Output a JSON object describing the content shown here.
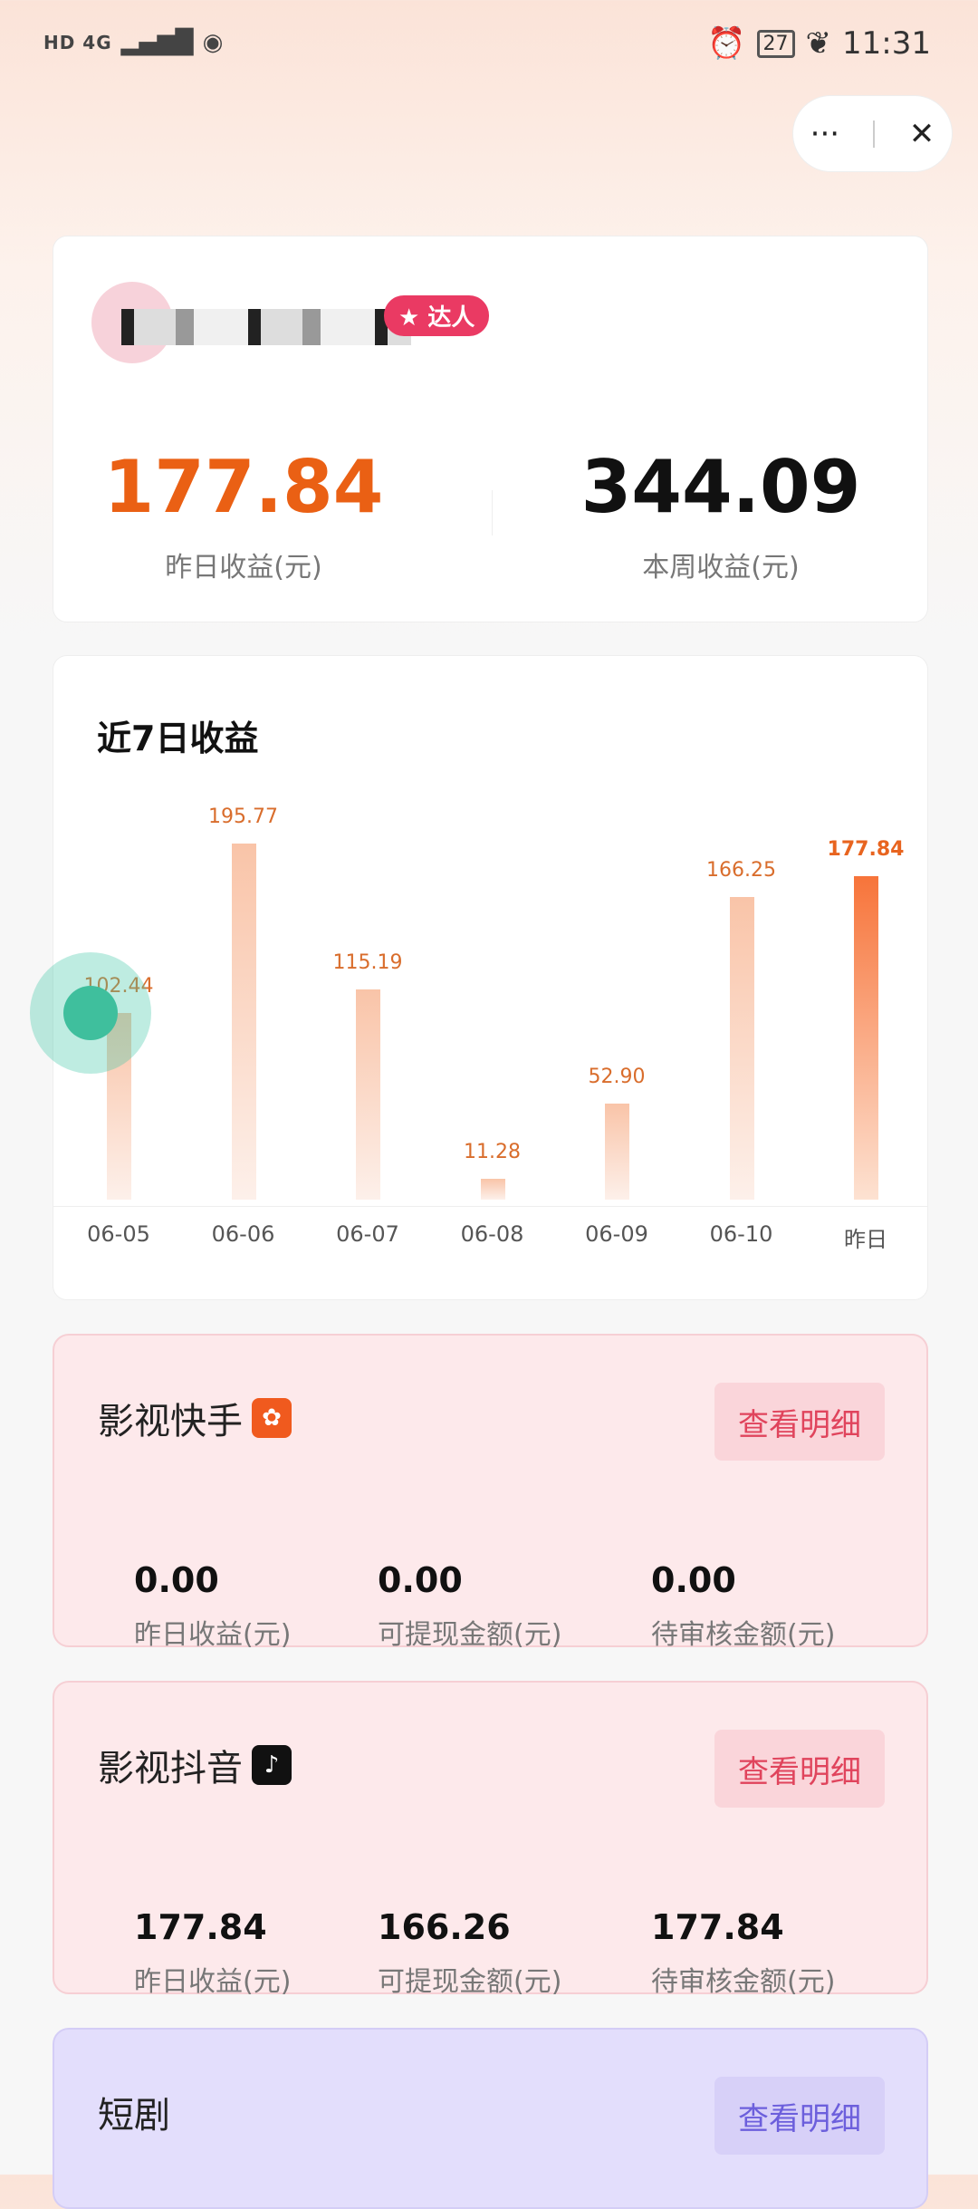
{
  "status_bar": {
    "left": "HD 4G",
    "time": "11:31",
    "battery": "27"
  },
  "capsule": {
    "more": "···",
    "close": "✕"
  },
  "profile": {
    "badge": "达人",
    "yesterday_value": "177.84",
    "yesterday_label": "昨日收益(元)",
    "week_value": "344.09",
    "week_label": "本周收益(元)"
  },
  "chart_data": {
    "type": "bar",
    "title": "近7日收益",
    "categories": [
      "06-05",
      "06-06",
      "06-07",
      "06-08",
      "06-09",
      "06-10",
      "昨日"
    ],
    "values": [
      102.44,
      195.77,
      115.19,
      11.28,
      52.9,
      166.25,
      177.84
    ],
    "value_labels": [
      "102.44",
      "195.77",
      "115.19",
      "11.28",
      "52.90",
      "166.25",
      "177.84"
    ],
    "highlight_index": 6,
    "colors": {
      "bar": "#f9c4a8",
      "highlight": "#f7743a"
    }
  },
  "platforms": [
    {
      "name": "影视快手",
      "icon": "kuaishou-icon",
      "button": "查看明细",
      "stats": [
        {
          "value": "0.00",
          "label": "昨日收益(元)"
        },
        {
          "value": "0.00",
          "label": "可提现金额(元)"
        },
        {
          "value": "0.00",
          "label": "待审核金额(元)"
        }
      ]
    },
    {
      "name": "影视抖音",
      "icon": "douyin-icon",
      "button": "查看明细",
      "stats": [
        {
          "value": "177.84",
          "label": "昨日收益(元)"
        },
        {
          "value": "166.26",
          "label": "可提现金额(元)"
        },
        {
          "value": "177.84",
          "label": "待审核金额(元)"
        }
      ]
    },
    {
      "name": "短剧",
      "button": "查看明细"
    }
  ]
}
